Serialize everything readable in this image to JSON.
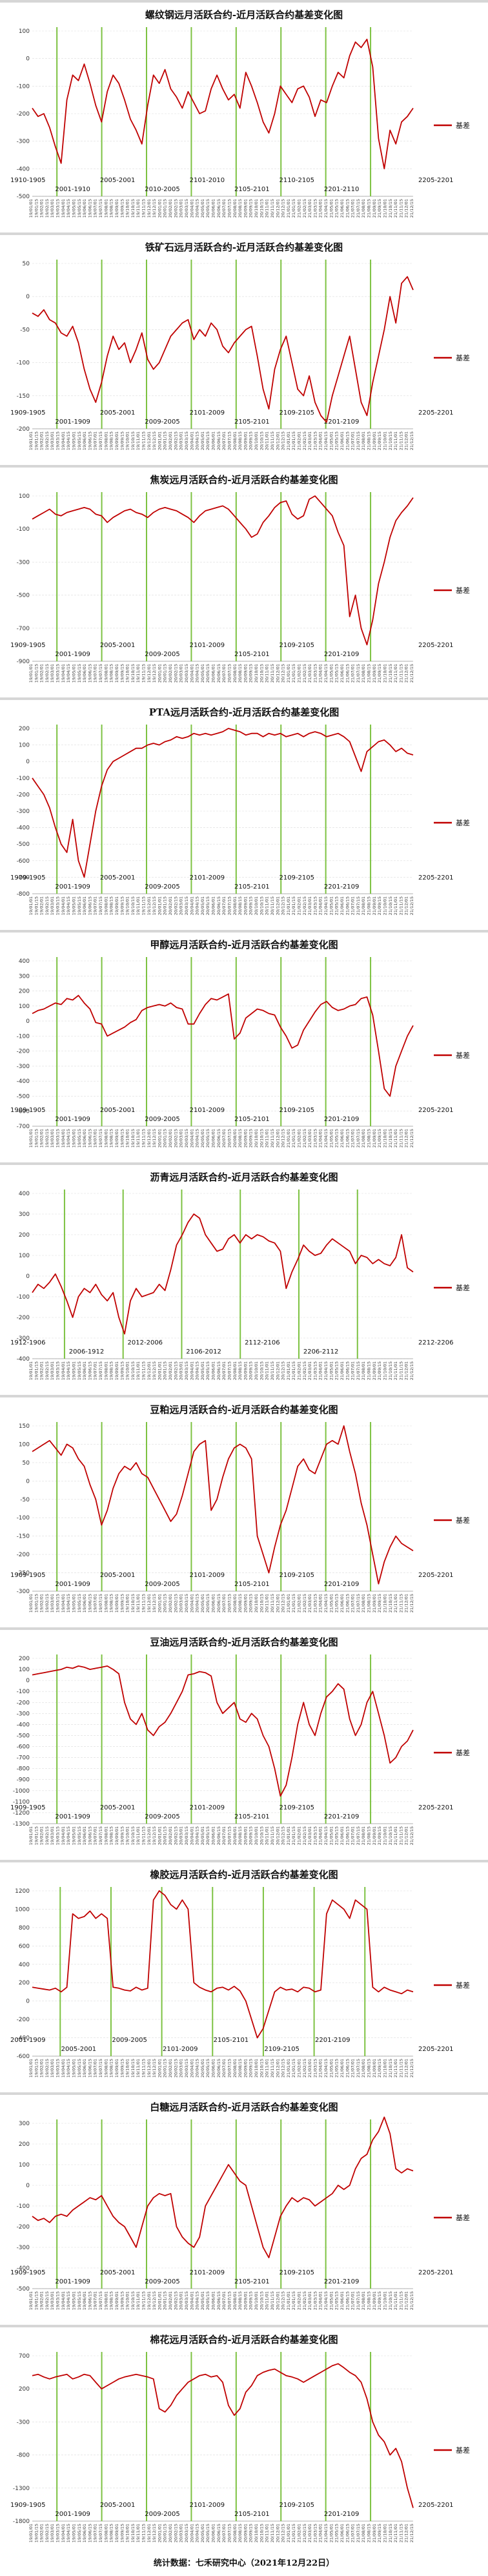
{
  "footer": "统计数据：七禾研究中心（2021年12月22日）",
  "chart_data": [
    {
      "type": "line",
      "title": "螺纹钢远月活跃合约-近月活跃合约基差变化图",
      "legend": "基差",
      "y_ticks": [
        "100",
        "0",
        "-100",
        "-200",
        "-300",
        "-400",
        "-500"
      ],
      "contracts": [
        "1910-1905",
        "2001-1910",
        "2005-2001",
        "2010-2005",
        "2101-2010",
        "2105-2101",
        "2110-2105",
        "2201-2110",
        "2205-2201"
      ],
      "values": [
        -180,
        -210,
        -200,
        -250,
        -320,
        -380,
        -150,
        -60,
        -80,
        -20,
        -90,
        -170,
        -230,
        -120,
        -60,
        -90,
        -150,
        -220,
        -260,
        -310,
        -170,
        -60,
        -90,
        -40,
        -110,
        -140,
        -180,
        -120,
        -160,
        -200,
        -190,
        -110,
        -60,
        -110,
        -150,
        -130,
        -180,
        -50,
        -100,
        -160,
        -230,
        -270,
        -200,
        -100,
        -130,
        -160,
        -110,
        -100,
        -140,
        -210,
        -150,
        -160,
        -100,
        -50,
        -70,
        10,
        60,
        40,
        70,
        -30,
        -290,
        -400,
        -260,
        -310,
        -230,
        -210,
        -180
      ]
    },
    {
      "type": "line",
      "title": "铁矿石远月活跃合约-近月活跃合约基差变化图",
      "legend": "基差",
      "y_ticks": [
        "50",
        "0",
        "-50",
        "-100",
        "-150",
        "-200"
      ],
      "contracts": [
        "1909-1905",
        "2001-1909",
        "2005-2001",
        "2009-2005",
        "2101-2009",
        "2105-2101",
        "2109-2105",
        "2201-2109",
        "2205-2201"
      ],
      "values": [
        -25,
        -30,
        -20,
        -35,
        -40,
        -55,
        -60,
        -45,
        -70,
        -110,
        -140,
        -160,
        -130,
        -90,
        -60,
        -80,
        -70,
        -100,
        -80,
        -55,
        -95,
        -110,
        -100,
        -80,
        -60,
        -50,
        -40,
        -35,
        -65,
        -50,
        -60,
        -40,
        -50,
        -75,
        -85,
        -70,
        -60,
        -50,
        -45,
        -90,
        -140,
        -170,
        -110,
        -80,
        -60,
        -100,
        -140,
        -150,
        -120,
        -160,
        -180,
        -190,
        -150,
        -120,
        -90,
        -60,
        -110,
        -160,
        -180,
        -130,
        -90,
        -50,
        0,
        -40,
        20,
        30,
        10
      ]
    },
    {
      "type": "line",
      "title": "焦炭远月活跃合约-近月活跃合约基差变化图",
      "legend": "基差",
      "y_ticks": [
        "100",
        "-100",
        "-300",
        "-500",
        "-700",
        "-900"
      ],
      "contracts": [
        "1909-1905",
        "2001-1909",
        "2005-2001",
        "2009-2005",
        "2101-2009",
        "2105-2101",
        "2109-2105",
        "2201-2109",
        "2205-2201"
      ],
      "values": [
        -40,
        -20,
        0,
        20,
        -10,
        -20,
        0,
        10,
        20,
        30,
        20,
        -10,
        -20,
        -60,
        -30,
        -10,
        10,
        20,
        0,
        -10,
        -30,
        0,
        20,
        30,
        20,
        10,
        -10,
        -30,
        -60,
        -20,
        10,
        20,
        30,
        40,
        20,
        -20,
        -60,
        -100,
        -150,
        -130,
        -60,
        -20,
        30,
        60,
        70,
        -10,
        -40,
        -20,
        80,
        100,
        60,
        20,
        -20,
        -120,
        -200,
        -630,
        -500,
        -700,
        -800,
        -650,
        -430,
        -300,
        -150,
        -50,
        0,
        40,
        90
      ]
    },
    {
      "type": "line",
      "title": "PTA远月活跃合约-近月活跃合约基差变化图",
      "legend": "基差",
      "y_ticks": [
        "200",
        "100",
        "0",
        "-100",
        "-200",
        "-300",
        "-400",
        "-500",
        "-600",
        "-700",
        "-800"
      ],
      "contracts": [
        "1909-1905",
        "2001-1909",
        "2005-2001",
        "2009-2005",
        "2101-2009",
        "2105-2101",
        "2109-2105",
        "2201-2109",
        "2205-2201"
      ],
      "values": [
        -100,
        -150,
        -200,
        -280,
        -400,
        -500,
        -550,
        -350,
        -600,
        -700,
        -500,
        -300,
        -150,
        -50,
        0,
        20,
        40,
        60,
        80,
        80,
        100,
        110,
        100,
        120,
        130,
        150,
        140,
        150,
        170,
        160,
        170,
        160,
        170,
        180,
        200,
        190,
        180,
        160,
        170,
        170,
        150,
        170,
        160,
        170,
        150,
        160,
        170,
        150,
        170,
        180,
        170,
        150,
        160,
        170,
        150,
        120,
        30,
        -60,
        60,
        90,
        120,
        130,
        100,
        60,
        80,
        50,
        40
      ]
    },
    {
      "type": "line",
      "title": "甲醇远月活跃合约-近月活跃合约基差变化图",
      "legend": "基差",
      "y_ticks": [
        "400",
        "300",
        "200",
        "100",
        "0",
        "-100",
        "-200",
        "-300",
        "-400",
        "-500",
        "-600",
        "-700"
      ],
      "contracts": [
        "1909-1905",
        "2001-1909",
        "2005-2001",
        "2009-2005",
        "2101-2009",
        "2105-2101",
        "2109-2105",
        "2201-2109",
        "2205-2201"
      ],
      "values": [
        50,
        70,
        80,
        100,
        120,
        110,
        150,
        140,
        170,
        120,
        80,
        -10,
        -20,
        -100,
        -80,
        -60,
        -40,
        -10,
        10,
        70,
        90,
        100,
        110,
        100,
        120,
        90,
        80,
        -20,
        -20,
        50,
        110,
        150,
        140,
        160,
        180,
        -120,
        -80,
        20,
        50,
        80,
        70,
        50,
        40,
        -40,
        -100,
        -180,
        -160,
        -60,
        0,
        60,
        110,
        130,
        90,
        70,
        80,
        100,
        110,
        150,
        160,
        40,
        -200,
        -450,
        -500,
        -300,
        -200,
        -100,
        -30
      ]
    },
    {
      "type": "line",
      "title": "沥青远月活跃合约-近月活跃合约基差变化图",
      "legend": "基差",
      "y_ticks": [
        "400",
        "300",
        "200",
        "100",
        "0",
        "-100",
        "-200",
        "-300",
        "-400"
      ],
      "contracts": [
        "1912-1906",
        "2006-1912",
        "2012-2006",
        "2106-2012",
        "2112-2106",
        "2206-2112",
        "2212-2206"
      ],
      "values": [
        -80,
        -40,
        -60,
        -30,
        10,
        -50,
        -120,
        -200,
        -100,
        -60,
        -80,
        -40,
        -90,
        -120,
        -80,
        -200,
        -280,
        -120,
        -60,
        -100,
        -90,
        -80,
        -40,
        -70,
        30,
        150,
        200,
        260,
        300,
        280,
        200,
        160,
        120,
        130,
        180,
        200,
        160,
        200,
        180,
        200,
        190,
        170,
        160,
        120,
        -60,
        20,
        80,
        150,
        120,
        100,
        110,
        150,
        180,
        160,
        140,
        120,
        60,
        100,
        90,
        60,
        80,
        60,
        50,
        90,
        200,
        40,
        20
      ]
    },
    {
      "type": "line",
      "title": "豆粕远月活跃合约-近月活跃合约基差变化图",
      "legend": "基差",
      "y_ticks": [
        "150",
        "100",
        "50",
        "0",
        "-50",
        "-100",
        "-150",
        "-200",
        "-250",
        "-300"
      ],
      "contracts": [
        "1909-1905",
        "2001-1909",
        "2005-2001",
        "2009-2005",
        "2101-2009",
        "2105-2101",
        "2109-2105",
        "2201-2109",
        "2205-2201"
      ],
      "values": [
        80,
        90,
        100,
        110,
        90,
        70,
        100,
        90,
        60,
        40,
        -10,
        -50,
        -120,
        -80,
        -20,
        20,
        40,
        30,
        50,
        20,
        10,
        -20,
        -50,
        -80,
        -110,
        -90,
        -40,
        20,
        80,
        100,
        110,
        -80,
        -50,
        10,
        60,
        90,
        100,
        90,
        60,
        -150,
        -200,
        -250,
        -180,
        -120,
        -80,
        -20,
        40,
        60,
        30,
        20,
        60,
        100,
        110,
        100,
        150,
        80,
        20,
        -60,
        -120,
        -200,
        -280,
        -220,
        -180,
        -150,
        -170,
        -180,
        -190
      ]
    },
    {
      "type": "line",
      "title": "豆油远月活跃合约-近月活跃合约基差变化图",
      "legend": "基差",
      "y_ticks": [
        "200",
        "100",
        "0",
        "-100",
        "-200",
        "-300",
        "-400",
        "-500",
        "-600",
        "-700",
        "-800",
        "-900",
        "-1000",
        "-1100",
        "-1200",
        "-1300"
      ],
      "contracts": [
        "1909-1905",
        "2001-1909",
        "2005-2001",
        "2009-2005",
        "2101-2009",
        "2105-2101",
        "2109-2105",
        "2201-2109",
        "2205-2201"
      ],
      "values": [
        50,
        60,
        70,
        80,
        90,
        100,
        120,
        110,
        130,
        120,
        100,
        110,
        120,
        130,
        100,
        60,
        -200,
        -350,
        -400,
        -300,
        -450,
        -500,
        -420,
        -380,
        -300,
        -200,
        -100,
        50,
        60,
        80,
        70,
        40,
        -200,
        -300,
        -250,
        -200,
        -350,
        -380,
        -300,
        -350,
        -500,
        -600,
        -800,
        -1050,
        -950,
        -700,
        -400,
        -200,
        -400,
        -500,
        -300,
        -150,
        -100,
        -30,
        -80,
        -350,
        -500,
        -400,
        -200,
        -100,
        -300,
        -500,
        -750,
        -700,
        -600,
        -550,
        -450
      ]
    },
    {
      "type": "line",
      "title": "橡胶远月活跃合约-近月活跃合约基差变化图",
      "legend": "基差",
      "y_ticks": [
        "1200",
        "1000",
        "800",
        "600",
        "400",
        "200",
        "0",
        "-200",
        "-400",
        "-600"
      ],
      "contracts": [
        "2001-1909",
        "2005-2001",
        "2009-2005",
        "2101-2009",
        "2105-2101",
        "2109-2105",
        "2201-2109",
        "2205-2201"
      ],
      "values": [
        150,
        140,
        130,
        120,
        140,
        100,
        150,
        950,
        900,
        920,
        980,
        900,
        950,
        900,
        150,
        140,
        120,
        110,
        150,
        120,
        140,
        1100,
        1200,
        1150,
        1050,
        1000,
        1100,
        1000,
        200,
        150,
        120,
        100,
        140,
        150,
        120,
        160,
        110,
        0,
        -200,
        -400,
        -300,
        -100,
        100,
        150,
        120,
        130,
        100,
        150,
        140,
        100,
        120,
        950,
        1100,
        1050,
        1000,
        900,
        1100,
        1050,
        1000,
        150,
        100,
        150,
        120,
        100,
        80,
        120,
        100
      ]
    },
    {
      "type": "line",
      "title": "白糖远月活跃合约-近月活跃合约基差变化图",
      "legend": "基差",
      "y_ticks": [
        "300",
        "200",
        "100",
        "0",
        "-100",
        "-200",
        "-300",
        "-400",
        "-500"
      ],
      "contracts": [
        "1909-1905",
        "2001-1909",
        "2005-2001",
        "2009-2005",
        "2101-2009",
        "2105-2101",
        "2109-2105",
        "2201-2109",
        "2205-2201"
      ],
      "values": [
        -150,
        -170,
        -160,
        -180,
        -150,
        -140,
        -150,
        -120,
        -100,
        -80,
        -60,
        -70,
        -50,
        -100,
        -150,
        -180,
        -200,
        -250,
        -300,
        -200,
        -100,
        -60,
        -40,
        -50,
        -40,
        -200,
        -250,
        -280,
        -300,
        -250,
        -100,
        -50,
        0,
        50,
        100,
        60,
        20,
        0,
        -100,
        -200,
        -300,
        -350,
        -250,
        -150,
        -100,
        -60,
        -80,
        -60,
        -70,
        -100,
        -80,
        -60,
        -40,
        0,
        -20,
        0,
        80,
        130,
        150,
        220,
        260,
        330,
        250,
        80,
        60,
        80,
        70
      ]
    },
    {
      "type": "line",
      "title": "棉花远月活跃合约-近月活跃合约基差变化图",
      "legend": "基差",
      "y_ticks": [
        "700",
        "200",
        "-300",
        "-800",
        "-1300",
        "-1800"
      ],
      "contracts": [
        "1909-1905",
        "2001-1909",
        "2005-2001",
        "2009-2005",
        "2101-2009",
        "2105-2101",
        "2109-2105",
        "2201-2109",
        "2205-2201"
      ],
      "values": [
        400,
        420,
        380,
        350,
        380,
        400,
        420,
        350,
        380,
        420,
        400,
        300,
        200,
        250,
        300,
        350,
        380,
        400,
        420,
        400,
        380,
        350,
        -100,
        -150,
        -50,
        100,
        200,
        300,
        350,
        400,
        420,
        380,
        400,
        300,
        -50,
        -200,
        -100,
        150,
        250,
        400,
        450,
        480,
        500,
        450,
        400,
        380,
        350,
        300,
        350,
        400,
        450,
        500,
        550,
        580,
        520,
        450,
        400,
        300,
        50,
        -300,
        -500,
        -600,
        -800,
        -700,
        -900,
        -1300,
        -1600
      ]
    }
  ]
}
